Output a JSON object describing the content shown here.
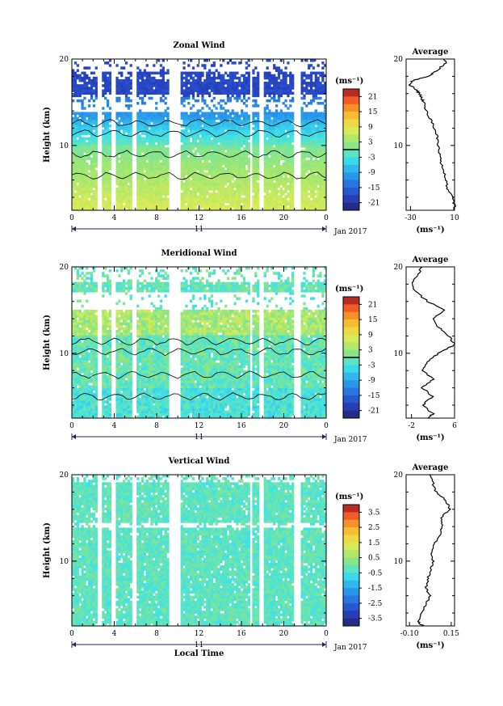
{
  "chart_data": [
    {
      "type": "heatmap",
      "title": "Zonal Wind",
      "ylabel": "Height (km)",
      "xlim": [
        0,
        24
      ],
      "ylim": [
        2.5,
        20
      ],
      "x_ticks": [
        "0",
        "4",
        "8",
        "12",
        "16",
        "20",
        "0"
      ],
      "y_ticks": [
        "20",
        "10"
      ],
      "date_label": "11",
      "date_right": "Jan 2017",
      "colorbar": {
        "unit": "(ms⁻¹)",
        "ticks": [
          "21",
          "15",
          "9",
          "3",
          "-3",
          "-9",
          "-15",
          "-21"
        ],
        "range": [
          -24,
          24
        ],
        "zero_line": true
      },
      "average": {
        "title": "Average",
        "xlabel": "(ms⁻¹)",
        "x_ticks": [
          "-30",
          "10"
        ],
        "xlim": [
          -34,
          10
        ],
        "y_ticks": [
          "20",
          "10"
        ],
        "height": [
          2.5,
          3,
          4,
          5,
          6,
          7,
          8,
          9,
          10,
          11,
          12,
          13,
          14,
          15,
          15.5,
          16,
          16.5,
          17,
          17.5,
          18,
          18.5,
          19,
          19.5,
          20
        ],
        "values": [
          9,
          10,
          8,
          4,
          2,
          0,
          -2,
          -4,
          -5,
          -6,
          -8,
          -12,
          -16,
          -18,
          -20,
          -22,
          -25,
          -31,
          -28,
          -14,
          -8,
          -3,
          2,
          0
        ]
      }
    },
    {
      "type": "heatmap",
      "title": "Meridional Wind",
      "ylabel": "Height (km)",
      "xlim": [
        0,
        24
      ],
      "ylim": [
        2.5,
        20
      ],
      "x_ticks": [
        "0",
        "4",
        "8",
        "12",
        "16",
        "20",
        "0"
      ],
      "y_ticks": [
        "20",
        "10"
      ],
      "date_label": "11",
      "date_right": "Jan 2017",
      "colorbar": {
        "unit": "(ms⁻¹)",
        "ticks": [
          "21",
          "15",
          "9",
          "3",
          "-3",
          "-9",
          "-15",
          "-21"
        ],
        "range": [
          -24,
          24
        ],
        "zero_line": true
      },
      "average": {
        "title": "Average",
        "xlabel": "(ms⁻¹)",
        "x_ticks": [
          "-2",
          "6"
        ],
        "xlim": [
          -3,
          6
        ],
        "y_ticks": [
          "20",
          "10"
        ],
        "height": [
          2.5,
          3,
          4,
          5,
          6,
          7,
          8,
          9,
          10,
          11,
          12,
          13,
          14,
          15,
          16,
          17,
          18,
          19,
          20
        ],
        "values": [
          1,
          2,
          0,
          2,
          0,
          2,
          0,
          1,
          3,
          6,
          5,
          3,
          2,
          4,
          1,
          -1,
          -2,
          -1,
          0
        ]
      }
    },
    {
      "type": "heatmap",
      "title": "Vertical Wind",
      "ylabel": "Height (km)",
      "xlabel": "Local Time",
      "xlim": [
        0,
        24
      ],
      "ylim": [
        2.5,
        20
      ],
      "x_ticks": [
        "0",
        "4",
        "8",
        "12",
        "16",
        "20",
        "0"
      ],
      "y_ticks": [
        "20",
        "10"
      ],
      "date_label": "11",
      "date_right": "Jan 2017",
      "colorbar": {
        "unit": "(ms⁻¹)",
        "ticks": [
          "3.5",
          "2.5",
          "1.5",
          "0.5",
          "-0.5",
          "-1.5",
          "-2.5",
          "-3.5"
        ],
        "range": [
          -4,
          4
        ],
        "zero_line": false
      },
      "average": {
        "title": "Average",
        "xlabel": "(ms⁻¹)",
        "x_ticks": [
          "-0.10",
          "0.15"
        ],
        "xlim": [
          -0.12,
          0.17
        ],
        "y_ticks": [
          "20",
          "10"
        ],
        "height": [
          2.5,
          3,
          4,
          5,
          6,
          7,
          8,
          9,
          10,
          11,
          12,
          13,
          14,
          15,
          16,
          17,
          18,
          19,
          20
        ],
        "values": [
          -0.02,
          -0.05,
          -0.03,
          0.0,
          0.02,
          0.0,
          0.01,
          0.03,
          0.04,
          0.03,
          0.05,
          0.08,
          0.1,
          0.09,
          0.14,
          0.12,
          0.06,
          0.04,
          0.02
        ]
      }
    }
  ]
}
